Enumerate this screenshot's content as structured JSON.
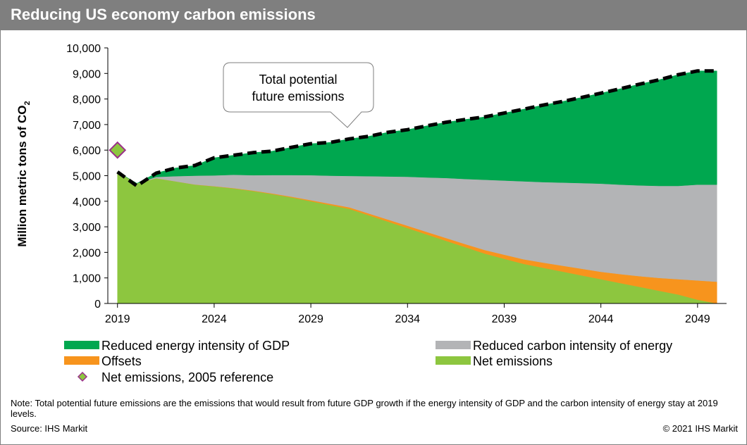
{
  "header": {
    "title": "Reducing US economy carbon emissions"
  },
  "chart_data": {
    "type": "area",
    "stacked": true,
    "ylabel_main": "Million  metric tons of CO",
    "ylabel_sub": "2",
    "ylim": [
      0,
      10000
    ],
    "yticks": [
      0,
      1000,
      2000,
      3000,
      4000,
      5000,
      6000,
      7000,
      8000,
      9000,
      10000
    ],
    "ytick_labels": [
      "0",
      "1,000",
      "2,000",
      "3,000",
      "4,000",
      "5,000",
      "6,000",
      "7,000",
      "8,000",
      "9,000",
      "10,000"
    ],
    "xlim": [
      2018.5,
      2050.5
    ],
    "xticks": [
      2019,
      2024,
      2029,
      2034,
      2039,
      2044,
      2049
    ],
    "xtick_labels": [
      "2019",
      "2024",
      "2029",
      "2034",
      "2039",
      "2044",
      "2049"
    ],
    "x": [
      2019,
      2020,
      2021,
      2022,
      2023,
      2024,
      2025,
      2026,
      2027,
      2028,
      2029,
      2030,
      2031,
      2032,
      2033,
      2034,
      2035,
      2036,
      2037,
      2038,
      2039,
      2040,
      2041,
      2042,
      2043,
      2044,
      2045,
      2046,
      2047,
      2048,
      2049,
      2050
    ],
    "series": [
      {
        "name": "Net emissions",
        "color": "#8dc63f",
        "values": [
          5150,
          4700,
          4900,
          4780,
          4650,
          4580,
          4500,
          4400,
          4280,
          4150,
          4000,
          3850,
          3700,
          3450,
          3200,
          2950,
          2700,
          2450,
          2200,
          1950,
          1750,
          1550,
          1400,
          1250,
          1100,
          950,
          800,
          650,
          500,
          350,
          150,
          0
        ]
      },
      {
        "name": "Offsets",
        "color": "#f7941d",
        "values": [
          0,
          0,
          0,
          0,
          5,
          10,
          15,
          20,
          25,
          30,
          40,
          50,
          60,
          70,
          80,
          90,
          100,
          110,
          120,
          140,
          160,
          180,
          200,
          230,
          260,
          290,
          350,
          420,
          500,
          600,
          750,
          850
        ]
      },
      {
        "name": "Reduced carbon intensity of energy",
        "color": "#b3b4b6",
        "values": [
          0,
          0,
          50,
          200,
          345,
          420,
          520,
          600,
          720,
          845,
          980,
          1100,
          1230,
          1460,
          1690,
          1920,
          2130,
          2350,
          2550,
          2750,
          2900,
          3050,
          3150,
          3250,
          3350,
          3450,
          3500,
          3550,
          3600,
          3650,
          3750,
          3800
        ]
      },
      {
        "name": "Reduced energy intensity of GDP",
        "color": "#00a74f",
        "values": [
          0,
          0,
          150,
          320,
          400,
          690,
          765,
          880,
          935,
          1085,
          1230,
          1300,
          1450,
          1560,
          1730,
          1840,
          2020,
          2180,
          2330,
          2460,
          2640,
          2820,
          3010,
          3170,
          3350,
          3540,
          3750,
          3960,
          4150,
          4350,
          4450,
          4450
        ]
      }
    ],
    "total_potential": {
      "name": "Total potential future emissions",
      "style": "dashed",
      "color": "#000000",
      "values": [
        5150,
        4600,
        5100,
        5300,
        5400,
        5700,
        5800,
        5900,
        5960,
        6110,
        6250,
        6300,
        6440,
        6540,
        6700,
        6800,
        6950,
        7090,
        7200,
        7300,
        7450,
        7600,
        7760,
        7900,
        8060,
        8230,
        8400,
        8580,
        8750,
        8950,
        9100,
        9100
      ]
    },
    "reference_point": {
      "name": "Net emissions, 2005 reference",
      "x": 2019,
      "y": 6000,
      "color": "#8dc63f",
      "edge_color": "#9b2f8b"
    },
    "callout": {
      "line1": "Total  potential",
      "line2": "future  emissions"
    },
    "legend": [
      {
        "label": "Reduced energy intensity of GDP",
        "color": "#00a74f",
        "kind": "box"
      },
      {
        "label": "Reduced carbon intensity of energy",
        "color": "#b3b4b6",
        "kind": "box"
      },
      {
        "label": "Offsets",
        "color": "#f7941d",
        "kind": "box"
      },
      {
        "label": "Net emissions",
        "color": "#8dc63f",
        "kind": "box"
      },
      {
        "label": "Net emissions, 2005 reference",
        "color": "#8dc63f",
        "kind": "diamond"
      }
    ]
  },
  "footer": {
    "note": "Note: Total potential future emissions are the emissions that would result from future GDP growth if the energy intensity of GDP and the carbon intensity of energy stay at 2019 levels.",
    "source": "Source: IHS Markit",
    "copyright": "© 2021 IHS Markit"
  }
}
